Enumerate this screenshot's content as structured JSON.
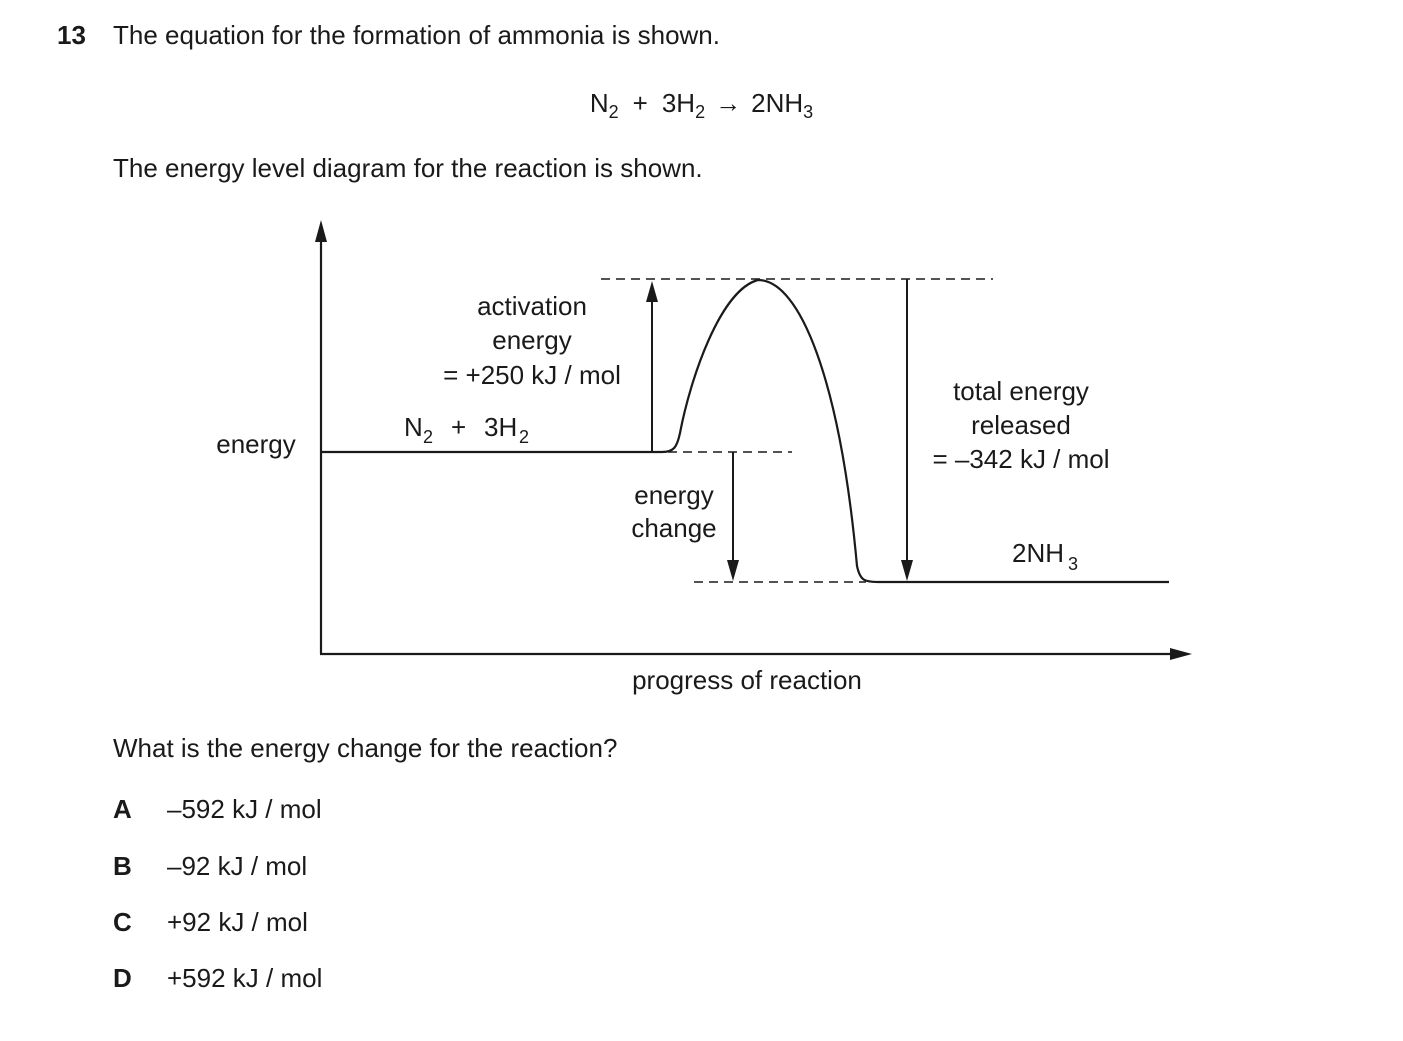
{
  "question": {
    "number": "13",
    "intro": "The equation for the formation of ammonia is shown.",
    "equation": {
      "reactant1": "N",
      "reactant1_sub": "2",
      "plus": "+",
      "reactant2": "3H",
      "reactant2_sub": "2",
      "arrow": "→",
      "product": "2NH",
      "product_sub": "3"
    },
    "diagram_intro": "The energy level diagram for the reaction is shown.",
    "prompt": "What is the energy change for the reaction?"
  },
  "diagram": {
    "y_axis_label": "energy",
    "x_axis_label": "progress of reaction",
    "reactants": {
      "text": "N",
      "sub1": "2",
      "plus": "+",
      "text2": "3H",
      "sub2": "2"
    },
    "products": {
      "text": "2NH",
      "sub": "3"
    },
    "activation_energy": {
      "line1": "activation",
      "line2": "energy",
      "line3": "= +250 kJ / mol"
    },
    "energy_change": {
      "line1": "energy",
      "line2": "change"
    },
    "total_energy": {
      "line1": "total energy",
      "line2": "released",
      "line3": "= –342 kJ / mol"
    }
  },
  "options": [
    {
      "letter": "A",
      "value": "–592 kJ / mol"
    },
    {
      "letter": "B",
      "value": "–92 kJ / mol"
    },
    {
      "letter": "C",
      "value": "+92 kJ / mol"
    },
    {
      "letter": "D",
      "value": "+592 kJ / mol"
    }
  ]
}
